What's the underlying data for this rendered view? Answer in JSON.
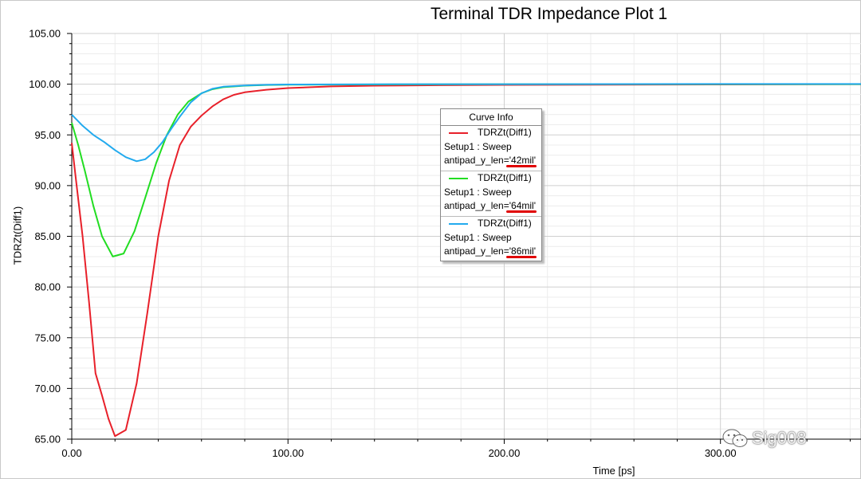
{
  "chart_data": {
    "type": "line",
    "title": "Terminal TDR Impedance Plot 1",
    "xlabel": "Time [ps]",
    "ylabel": "TDRZt(Diff1)",
    "xlim": [
      0,
      365
    ],
    "ylim": [
      65,
      105
    ],
    "x_ticks": [
      "0.00",
      "100.00",
      "200.00",
      "300.00"
    ],
    "y_ticks": [
      "65.00",
      "70.00",
      "75.00",
      "80.00",
      "85.00",
      "90.00",
      "95.00",
      "100.00",
      "105.00"
    ],
    "grid": true,
    "legend_title": "Curve Info",
    "legend_position": "center",
    "series": [
      {
        "name": "TDRZt(Diff1)",
        "setup": "Setup1 : Sweep",
        "param": "antipad_y_len='42mil'",
        "color": "#e8202a",
        "x": [
          0,
          2,
          5,
          8,
          11,
          14,
          17,
          20,
          25,
          30,
          35,
          40,
          45,
          50,
          55,
          60,
          65,
          70,
          75,
          80,
          90,
          100,
          120,
          140,
          170,
          200,
          250,
          300,
          365
        ],
        "y": [
          94.2,
          90.5,
          85,
          78.5,
          71.5,
          69.3,
          67.0,
          65.3,
          65.9,
          70.5,
          77.5,
          85.0,
          90.5,
          94.0,
          95.8,
          96.9,
          97.8,
          98.5,
          98.95,
          99.2,
          99.45,
          99.62,
          99.78,
          99.85,
          99.9,
          99.93,
          99.95,
          99.97,
          100.0
        ]
      },
      {
        "name": "TDRZt(Diff1)",
        "setup": "Setup1 : Sweep",
        "param": "antipad_y_len='64mil'",
        "color": "#22dd22",
        "x": [
          0,
          3,
          6,
          10,
          14,
          19,
          24,
          29,
          34,
          39,
          44,
          49,
          54,
          60,
          65,
          70,
          80,
          90,
          100,
          150,
          200,
          300,
          365
        ],
        "y": [
          96.2,
          94.0,
          91.5,
          88.0,
          85.0,
          83.0,
          83.3,
          85.5,
          88.8,
          92.2,
          95.0,
          97.0,
          98.3,
          99.1,
          99.5,
          99.7,
          99.85,
          99.92,
          99.95,
          99.98,
          100.0,
          100.0,
          100.0
        ]
      },
      {
        "name": "TDRZt(Diff1)",
        "setup": "Setup1 : Sweep",
        "param": "antipad_y_len='86mil'",
        "color": "#22aaee",
        "x": [
          0,
          5,
          10,
          15,
          20,
          25,
          30,
          34,
          38,
          42,
          46,
          50,
          55,
          60,
          65,
          70,
          80,
          90,
          100,
          150,
          200,
          300,
          365
        ],
        "y": [
          97.0,
          95.9,
          95.0,
          94.3,
          93.5,
          92.8,
          92.4,
          92.6,
          93.3,
          94.3,
          95.6,
          96.8,
          98.2,
          99.1,
          99.55,
          99.75,
          99.88,
          99.94,
          99.97,
          100.0,
          100.0,
          100.02,
          100.02
        ]
      }
    ]
  },
  "watermark": {
    "text": "Sig008"
  }
}
